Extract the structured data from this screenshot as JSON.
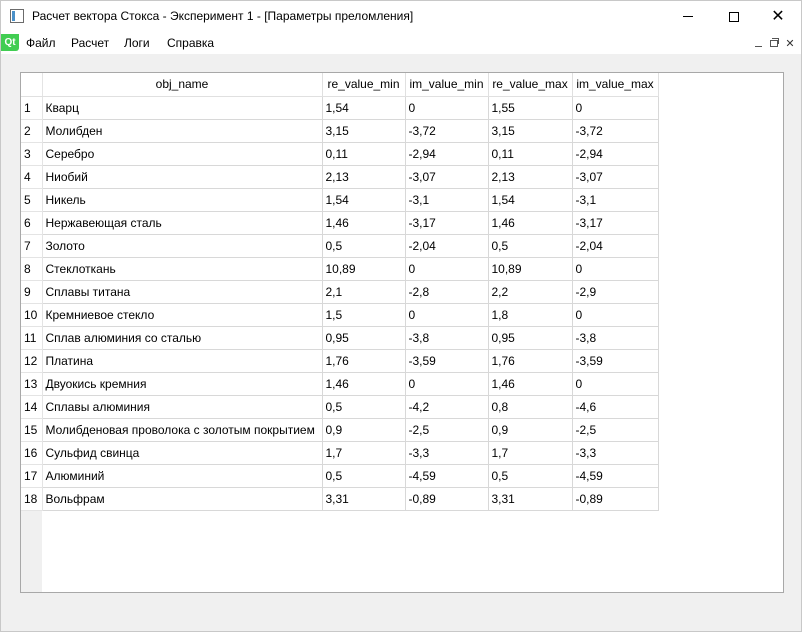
{
  "window": {
    "title": "Расчет вектора Стокса - Эксперимент 1 - [Параметры преломления]"
  },
  "menu": {
    "logo": "Qt",
    "items": [
      "Файл",
      "Расчет",
      "Логи",
      "Справка"
    ]
  },
  "table": {
    "headers": [
      "obj_name",
      "re_value_min",
      "im_value_min",
      "re_value_max",
      "im_value_max"
    ],
    "rows": [
      [
        "1",
        "Кварц",
        "1,54",
        "0",
        "1,55",
        "0"
      ],
      [
        "2",
        "Молибден",
        "3,15",
        "-3,72",
        "3,15",
        "-3,72"
      ],
      [
        "3",
        "Серебро",
        "0,11",
        "-2,94",
        "0,11",
        "-2,94"
      ],
      [
        "4",
        "Ниобий",
        "2,13",
        "-3,07",
        "2,13",
        "-3,07"
      ],
      [
        "5",
        "Никель",
        "1,54",
        "-3,1",
        "1,54",
        "-3,1"
      ],
      [
        "6",
        "Нержавеющая сталь",
        "1,46",
        "-3,17",
        "1,46",
        "-3,17"
      ],
      [
        "7",
        "Золото",
        "0,5",
        "-2,04",
        "0,5",
        "-2,04"
      ],
      [
        "8",
        "Стеклоткань",
        "10,89",
        "0",
        "10,89",
        "0"
      ],
      [
        "9",
        "Сплавы титана",
        "2,1",
        "-2,8",
        "2,2",
        "-2,9"
      ],
      [
        "10",
        "Кремниевое стекло",
        "1,5",
        "0",
        "1,8",
        "0"
      ],
      [
        "11",
        "Сплав алюминия со сталью",
        "0,95",
        "-3,8",
        "0,95",
        "-3,8"
      ],
      [
        "12",
        "Платина",
        "1,76",
        "-3,59",
        "1,76",
        "-3,59"
      ],
      [
        "13",
        "Двуокись кремния",
        "1,46",
        "0",
        "1,46",
        "0"
      ],
      [
        "14",
        "Сплавы алюминия",
        "0,5",
        "-4,2",
        "0,8",
        "-4,6"
      ],
      [
        "15",
        "Молибденовая проволока с золотым покрытием",
        "0,9",
        "-2,5",
        "0,9",
        "-2,5"
      ],
      [
        "16",
        "Сульфид свинца",
        "1,7",
        "-3,3",
        "1,7",
        "-3,3"
      ],
      [
        "17",
        "Алюминий",
        "0,5",
        "-4,59",
        "0,5",
        "-4,59"
      ],
      [
        "18",
        "Вольфрам",
        "3,31",
        "-0,89",
        "3,31",
        "-0,89"
      ]
    ]
  }
}
